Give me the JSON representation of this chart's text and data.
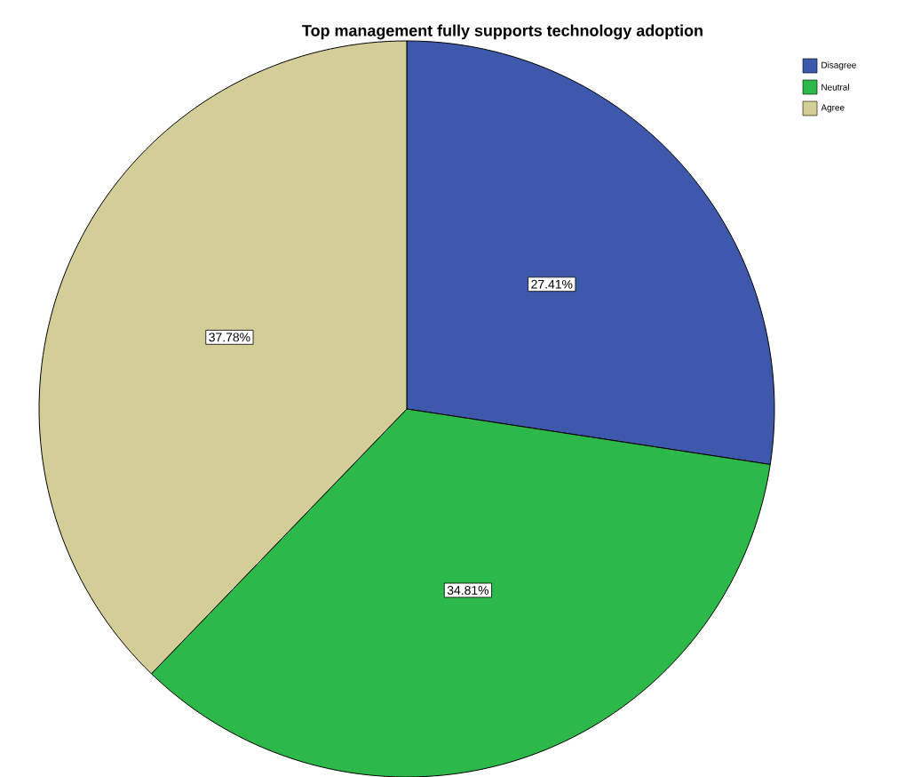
{
  "chart_data": {
    "type": "pie",
    "title": "Top management fully supports technology adoption",
    "categories": [
      "Disagree",
      "Neutral",
      "Agree"
    ],
    "values": [
      27.41,
      34.81,
      37.78
    ],
    "value_labels": [
      "27.41%",
      "34.81%",
      "37.78%"
    ],
    "colors": [
      "#3e58ac",
      "#2db84a",
      "#d3ce97"
    ],
    "legend": "top right"
  }
}
